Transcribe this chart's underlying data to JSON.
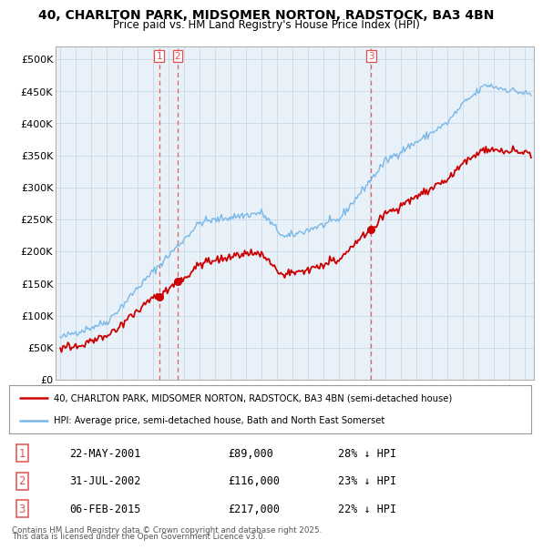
{
  "title": "40, CHARLTON PARK, MIDSOMER NORTON, RADSTOCK, BA3 4BN",
  "subtitle": "Price paid vs. HM Land Registry's House Price Index (HPI)",
  "ylim": [
    0,
    520000
  ],
  "yticks": [
    0,
    50000,
    100000,
    150000,
    200000,
    250000,
    300000,
    350000,
    400000,
    450000,
    500000
  ],
  "ytick_labels": [
    "£0",
    "£50K",
    "£100K",
    "£150K",
    "£200K",
    "£250K",
    "£300K",
    "£350K",
    "£400K",
    "£450K",
    "£500K"
  ],
  "hpi_color": "#7ab8e8",
  "price_color": "#cc0000",
  "vline_color": "#e05050",
  "chart_bg": "#e8f0f8",
  "transactions": [
    {
      "date_num": 2001.388,
      "price": 89000,
      "label": "1",
      "date_str": "22-MAY-2001",
      "price_str": "£89,000",
      "pct": "28% ↓ HPI"
    },
    {
      "date_num": 2002.579,
      "price": 116000,
      "label": "2",
      "date_str": "31-JUL-2002",
      "price_str": "£116,000",
      "pct": "23% ↓ HPI"
    },
    {
      "date_num": 2015.092,
      "price": 217000,
      "label": "3",
      "date_str": "06-FEB-2015",
      "price_str": "£217,000",
      "pct": "22% ↓ HPI"
    }
  ],
  "legend_property_label": "40, CHARLTON PARK, MIDSOMER NORTON, RADSTOCK, BA3 4BN (semi-detached house)",
  "legend_hpi_label": "HPI: Average price, semi-detached house, Bath and North East Somerset",
  "footer_line1": "Contains HM Land Registry data © Crown copyright and database right 2025.",
  "footer_line2": "This data is licensed under the Open Government Licence v3.0.",
  "background_color": "#ffffff",
  "grid_color": "#c8d8e8"
}
